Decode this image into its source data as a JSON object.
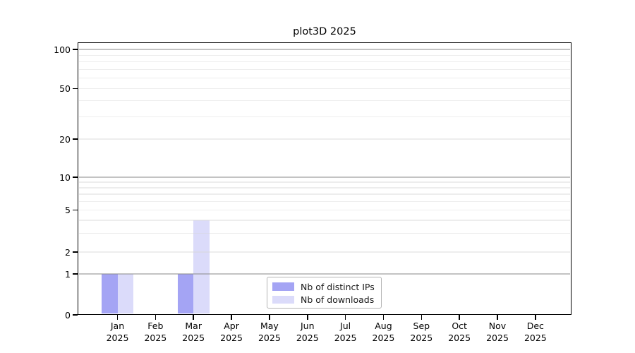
{
  "chart_data": {
    "type": "bar",
    "title": "plot3D 2025",
    "xlabel": "",
    "ylabel": "",
    "x": {
      "months": [
        "Jan",
        "Feb",
        "Mar",
        "Apr",
        "May",
        "Jun",
        "Jul",
        "Aug",
        "Sep",
        "Oct",
        "Nov",
        "Dec"
      ],
      "year": "2025"
    },
    "series": [
      {
        "name": "Nb of distinct IPs",
        "color": "#a4a4f4",
        "values": [
          1,
          0,
          1,
          0,
          0,
          0,
          0,
          0,
          0,
          0,
          0,
          0
        ]
      },
      {
        "name": "Nb of downloads",
        "color": "#dbdbfa",
        "values": [
          1,
          0,
          4,
          0,
          0,
          0,
          0,
          0,
          0,
          0,
          0,
          0
        ]
      }
    ],
    "y_axis": {
      "scale": "log-like (linear 0-1, logarithmic above)",
      "tick_values": [
        0,
        1,
        2,
        5,
        10,
        20,
        50,
        100
      ],
      "tick_labels": [
        "0",
        "1",
        "2",
        "5",
        "10",
        "20",
        "50",
        "100"
      ],
      "gridlines_dark": [
        1,
        10,
        100
      ],
      "gridlines_faint": [
        2,
        3,
        4,
        5,
        6,
        7,
        8,
        9,
        20,
        30,
        40,
        50,
        60,
        70,
        80,
        90
      ],
      "ylim": [
        0,
        110
      ]
    },
    "legend": {
      "position": "bottom-center-inside"
    },
    "grid": true,
    "colors": {
      "grid_dark": "rgba(140,140,140,0.52)",
      "grid_faint": "rgba(215,215,215,0.45)",
      "spine": "#000000",
      "background": "#ffffff"
    }
  }
}
